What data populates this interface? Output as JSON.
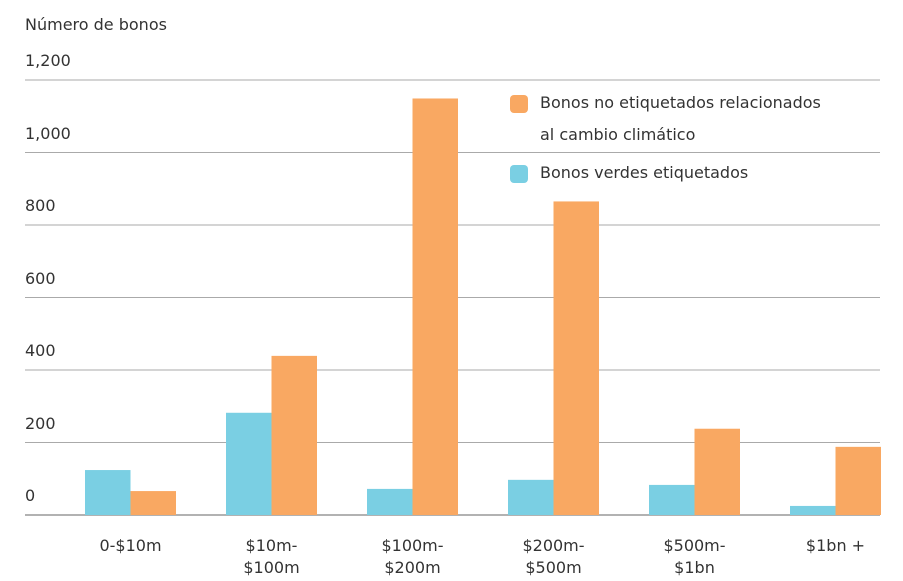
{
  "chart_data": {
    "type": "bar",
    "y_label": "Número de bonos",
    "categories": [
      "0-$10m",
      "$10m-\n$100m",
      "$100m-\n$200m",
      "$200m-\n$500m",
      "$500m-\n$1bn",
      "$1bn +"
    ],
    "series": [
      {
        "name": "Bonos verdes etiquetados",
        "color": "#7acfe3",
        "values": [
          124,
          282,
          72,
          97,
          83,
          25
        ]
      },
      {
        "name": "Bonos no etiquetados relacionados\nal cambio climático",
        "color": "#f9a862",
        "values": [
          66,
          439,
          1149,
          865,
          238,
          188
        ]
      }
    ],
    "ylim": [
      0,
      1200
    ],
    "yticks": [
      0,
      200,
      400,
      600,
      800,
      {
        "value": 1000,
        "label": "1,000"
      },
      {
        "value": 1200,
        "label": "1,200"
      }
    ],
    "grid": true,
    "legend": "top-right"
  }
}
